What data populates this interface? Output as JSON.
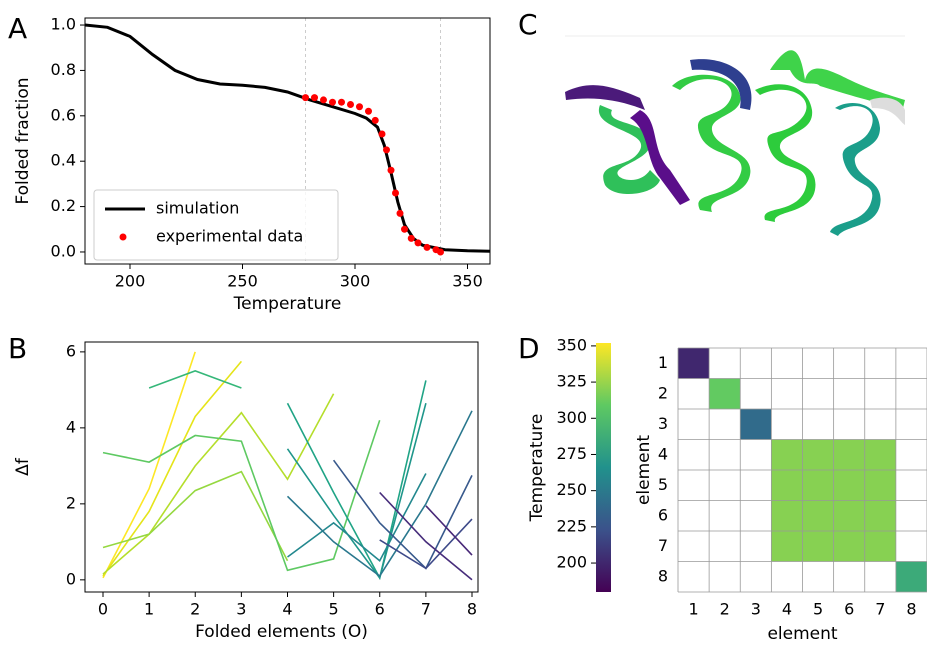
{
  "panel_labels": [
    "A",
    "B",
    "C",
    "D"
  ],
  "chart_data": [
    {
      "type": "line",
      "xlabel": "Temperature",
      "ylabel": "Folded fraction",
      "xlim": [
        180,
        360
      ],
      "ylim": [
        -0.053,
        1.031
      ],
      "xticks": [
        200,
        250,
        300,
        350
      ],
      "yticks": [
        {
          "value": 0,
          "label": "0.0"
        },
        {
          "value": 0.2,
          "label": "0.2"
        },
        {
          "value": 0.4,
          "label": "0.4"
        },
        {
          "value": 0.6,
          "label": "0.6"
        },
        {
          "value": 0.8,
          "label": "0.8"
        },
        {
          "value": 1,
          "label": "1.0"
        }
      ],
      "vlines": [
        278,
        338
      ],
      "legend": "lower left",
      "series": [
        {
          "name": "simulation",
          "type": "line",
          "color": "#000000",
          "x": [
            180,
            190,
            200,
            210,
            220,
            230,
            240,
            250,
            260,
            270,
            280,
            290,
            300,
            305,
            310,
            313,
            316,
            319,
            322,
            326,
            330,
            340,
            350,
            360
          ],
          "values": [
            1.0,
            0.99,
            0.95,
            0.87,
            0.8,
            0.76,
            0.74,
            0.735,
            0.725,
            0.705,
            0.67,
            0.64,
            0.61,
            0.59,
            0.55,
            0.47,
            0.35,
            0.22,
            0.12,
            0.06,
            0.03,
            0.01,
            0.005,
            0.003
          ]
        },
        {
          "name": "experimental data",
          "type": "scatter",
          "color": "#ff0000",
          "x": [
            278,
            282,
            286,
            290,
            294,
            298,
            302,
            306,
            309,
            312,
            314,
            316,
            318,
            320,
            322,
            325,
            328,
            332,
            336,
            338
          ],
          "values": [
            0.68,
            0.68,
            0.67,
            0.66,
            0.66,
            0.65,
            0.64,
            0.62,
            0.58,
            0.52,
            0.45,
            0.36,
            0.26,
            0.17,
            0.1,
            0.06,
            0.04,
            0.02,
            0.01,
            0.0
          ]
        }
      ]
    },
    {
      "type": "multiline",
      "xlabel": "Folded elements (O)",
      "ylabel": "Δf",
      "xlim": [
        -0.39,
        8.13
      ],
      "ylim": [
        -0.32,
        6.26
      ],
      "xticks": [
        0,
        1,
        2,
        3,
        4,
        5,
        6,
        7,
        8
      ],
      "yticks": [
        0,
        2,
        4,
        6
      ],
      "x": [
        0,
        1,
        2,
        3,
        4,
        5,
        6,
        7,
        8
      ],
      "series": [
        {
          "color": "#fde725",
          "values": [
            0.05,
            2.4,
            6.0,
            null,
            null,
            null,
            null,
            null,
            null
          ]
        },
        {
          "color": "#e5e419",
          "values": [
            0.1,
            1.8,
            4.3,
            5.75,
            null,
            null,
            null,
            null,
            null
          ]
        },
        {
          "color": "#b5de2b",
          "values": [
            0.15,
            1.2,
            3.0,
            4.4,
            2.65,
            4.9,
            null,
            null,
            null
          ]
        },
        {
          "color": "#95d840",
          "values": [
            0.85,
            1.2,
            2.35,
            2.85,
            0.5,
            null,
            null,
            null,
            null
          ]
        },
        {
          "color": "#5ec962",
          "values": [
            3.35,
            3.1,
            3.8,
            3.65,
            0.25,
            0.55,
            4.2,
            null,
            null
          ]
        },
        {
          "color": "#35b779",
          "values": [
            null,
            5.05,
            5.5,
            5.05,
            null,
            null,
            null,
            null,
            null
          ]
        },
        {
          "color": "#20a486",
          "values": [
            null,
            null,
            null,
            null,
            4.65,
            2.3,
            0.05,
            5.25,
            null
          ]
        },
        {
          "color": "#1f968b",
          "values": [
            null,
            null,
            null,
            null,
            3.45,
            1.7,
            0.05,
            4.65,
            null
          ]
        },
        {
          "color": "#23888e",
          "values": [
            null,
            null,
            null,
            null,
            0.6,
            1.5,
            0.5,
            2.8,
            null
          ]
        },
        {
          "color": "#2a788e",
          "values": [
            null,
            null,
            null,
            null,
            2.2,
            1.0,
            0.1,
            2.0,
            4.45
          ]
        },
        {
          "color": "#38598c",
          "values": [
            null,
            null,
            null,
            null,
            null,
            3.15,
            1.5,
            0.3,
            2.75
          ]
        },
        {
          "color": "#3e4a89",
          "values": [
            null,
            null,
            null,
            null,
            null,
            null,
            1.05,
            0.3,
            1.6
          ]
        },
        {
          "color": "#472d7b",
          "values": [
            null,
            null,
            null,
            null,
            null,
            null,
            2.3,
            1.0,
            0.0
          ]
        },
        {
          "color": "#482878",
          "values": [
            null,
            null,
            null,
            null,
            null,
            null,
            null,
            1.95,
            0.65
          ]
        }
      ]
    },
    {
      "type": "heatmap",
      "xlabel": "element",
      "ylabel": "element",
      "x_categories": [
        "1",
        "2",
        "3",
        "4",
        "5",
        "6",
        "7",
        "8"
      ],
      "y_categories": [
        "1",
        "2",
        "3",
        "4",
        "5",
        "6",
        "7",
        "8"
      ],
      "values": [
        [
          200,
          null,
          null,
          null,
          null,
          null,
          null,
          null
        ],
        [
          null,
          310,
          null,
          null,
          null,
          null,
          null,
          null
        ],
        [
          null,
          null,
          240,
          null,
          null,
          null,
          null,
          null
        ],
        [
          null,
          null,
          null,
          320,
          320,
          320,
          320,
          null
        ],
        [
          null,
          null,
          null,
          320,
          320,
          320,
          320,
          null
        ],
        [
          null,
          null,
          null,
          320,
          320,
          320,
          320,
          null
        ],
        [
          null,
          null,
          null,
          320,
          320,
          320,
          320,
          null
        ],
        [
          null,
          null,
          null,
          null,
          null,
          null,
          null,
          285
        ]
      ],
      "colorbar": {
        "label": "Temperature",
        "lim": [
          180,
          352
        ],
        "ticks": [
          200,
          225,
          250,
          275,
          300,
          325,
          350
        ],
        "colormap": [
          "#440154",
          "#3b528b",
          "#21918c",
          "#5ec962",
          "#fde725"
        ]
      }
    }
  ]
}
